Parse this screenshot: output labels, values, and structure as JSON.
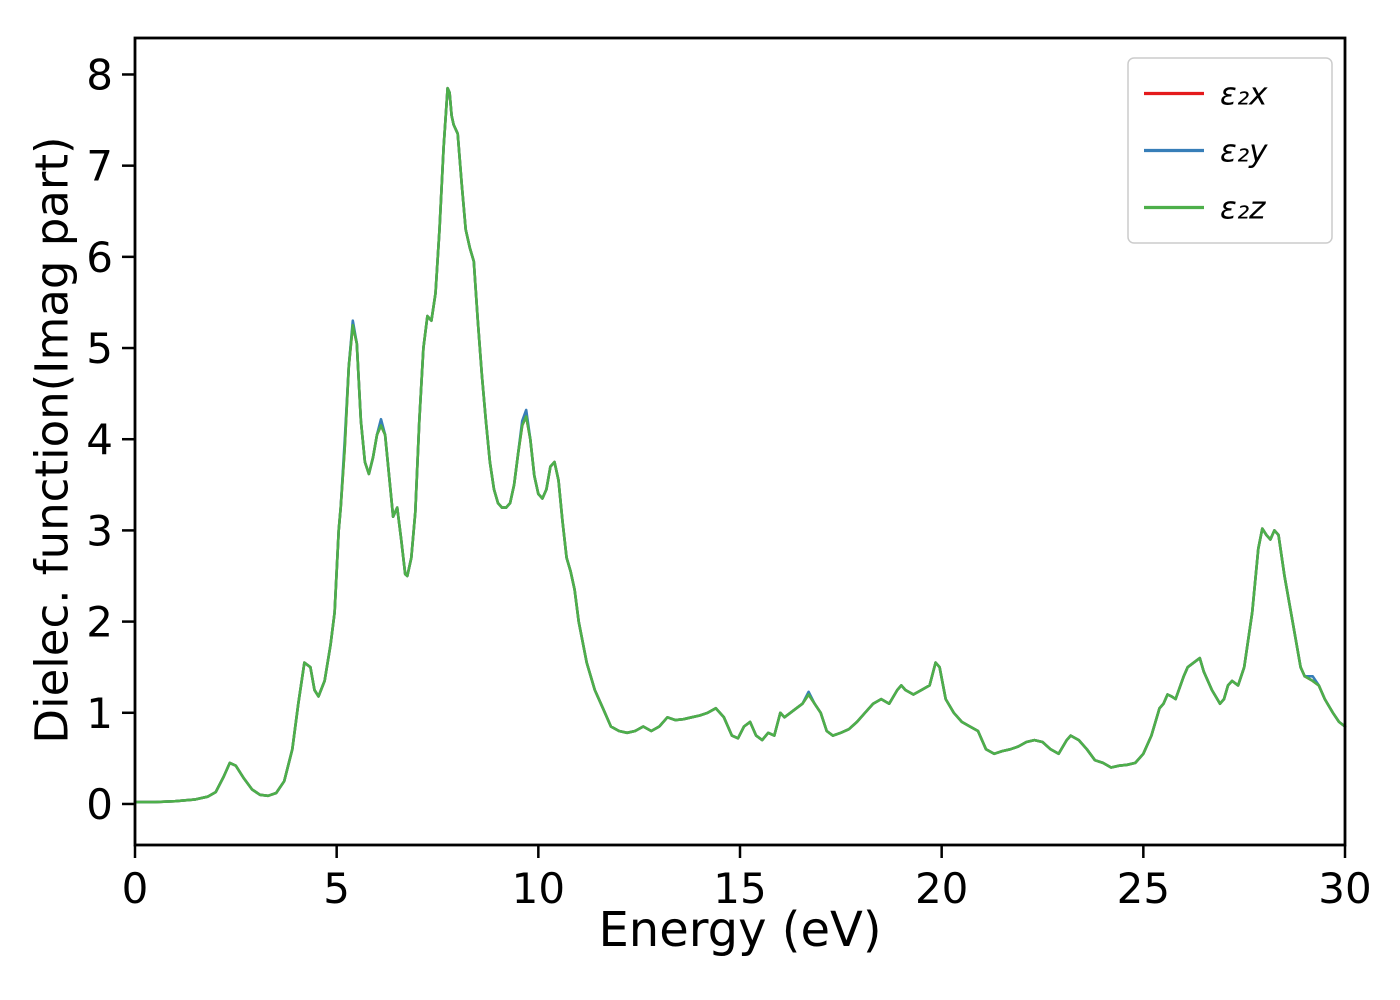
{
  "figure": {
    "background": "#ffffff"
  },
  "chart_data": {
    "type": "line",
    "title": "",
    "xlabel": "Energy (eV)",
    "ylabel": "Dielec. function(Imag part)",
    "xlim": [
      0,
      30
    ],
    "ylim": [
      -0.45,
      8.4
    ],
    "xticks": [
      0,
      5,
      10,
      15,
      20,
      25,
      30
    ],
    "yticks": [
      0,
      1,
      2,
      3,
      4,
      5,
      6,
      7,
      8
    ],
    "grid": false,
    "legend_position": "upper right",
    "x": [
      0,
      0.5,
      1,
      1.5,
      1.8,
      2,
      2.2,
      2.35,
      2.5,
      2.7,
      2.9,
      3.1,
      3.3,
      3.5,
      3.7,
      3.9,
      4.05,
      4.2,
      4.35,
      4.45,
      4.55,
      4.7,
      4.85,
      4.95,
      5.05,
      5.1,
      5.2,
      5.3,
      5.4,
      5.5,
      5.6,
      5.7,
      5.8,
      5.9,
      6,
      6.1,
      6.2,
      6.3,
      6.4,
      6.5,
      6.6,
      6.7,
      6.75,
      6.85,
      6.95,
      7.05,
      7.15,
      7.25,
      7.35,
      7.45,
      7.55,
      7.65,
      7.75,
      7.8,
      7.85,
      7.9,
      8,
      8.1,
      8.2,
      8.3,
      8.4,
      8.5,
      8.6,
      8.7,
      8.8,
      8.9,
      9,
      9.1,
      9.2,
      9.3,
      9.4,
      9.5,
      9.6,
      9.7,
      9.8,
      9.9,
      10,
      10.1,
      10.2,
      10.3,
      10.4,
      10.5,
      10.6,
      10.7,
      10.8,
      10.9,
      11,
      11.2,
      11.4,
      11.6,
      11.8,
      12,
      12.2,
      12.4,
      12.6,
      12.8,
      13,
      13.2,
      13.4,
      13.6,
      13.8,
      14,
      14.2,
      14.4,
      14.6,
      14.8,
      14.95,
      15.1,
      15.25,
      15.4,
      15.55,
      15.7,
      15.85,
      16,
      16.1,
      16.25,
      16.4,
      16.55,
      16.7,
      16.85,
      17,
      17.15,
      17.3,
      17.5,
      17.7,
      17.9,
      18.1,
      18.3,
      18.5,
      18.7,
      18.9,
      19,
      19.1,
      19.3,
      19.5,
      19.7,
      19.85,
      19.95,
      20.1,
      20.3,
      20.5,
      20.7,
      20.9,
      21.1,
      21.3,
      21.5,
      21.7,
      21.9,
      22.1,
      22.3,
      22.5,
      22.7,
      22.9,
      23.1,
      23.2,
      23.4,
      23.6,
      23.8,
      24,
      24.2,
      24.4,
      24.6,
      24.8,
      25,
      25.2,
      25.4,
      25.5,
      25.6,
      25.7,
      25.8,
      26,
      26.1,
      26.25,
      26.4,
      26.5,
      26.7,
      26.9,
      27,
      27.1,
      27.2,
      27.35,
      27.5,
      27.7,
      27.85,
      27.95,
      28.05,
      28.15,
      28.25,
      28.35,
      28.5,
      28.7,
      28.9,
      29,
      29.2,
      29.35,
      29.5,
      29.7,
      29.85,
      30
    ],
    "series": [
      {
        "name": "ε₂x",
        "color": "#e41a1c",
        "values": [
          0.02,
          0.02,
          0.03,
          0.05,
          0.08,
          0.13,
          0.3,
          0.45,
          0.42,
          0.28,
          0.16,
          0.1,
          0.09,
          0.12,
          0.25,
          0.6,
          1.1,
          1.55,
          1.5,
          1.25,
          1.18,
          1.35,
          1.75,
          2.1,
          3.0,
          3.25,
          3.9,
          4.8,
          5.25,
          5.05,
          4.2,
          3.75,
          3.62,
          3.8,
          4.05,
          4.15,
          4.05,
          3.6,
          3.15,
          3.25,
          2.9,
          2.52,
          2.5,
          2.7,
          3.2,
          4.2,
          5.0,
          5.35,
          5.3,
          5.6,
          6.3,
          7.2,
          7.85,
          7.8,
          7.55,
          7.45,
          7.35,
          6.8,
          6.3,
          6.1,
          5.95,
          5.3,
          4.7,
          4.2,
          3.75,
          3.45,
          3.3,
          3.25,
          3.25,
          3.3,
          3.5,
          3.85,
          4.15,
          4.25,
          4.0,
          3.6,
          3.4,
          3.35,
          3.45,
          3.7,
          3.75,
          3.55,
          3.1,
          2.7,
          2.55,
          2.35,
          2.0,
          1.55,
          1.25,
          1.05,
          0.85,
          0.8,
          0.78,
          0.8,
          0.85,
          0.8,
          0.85,
          0.95,
          0.92,
          0.93,
          0.95,
          0.97,
          1.0,
          1.05,
          0.95,
          0.75,
          0.72,
          0.85,
          0.9,
          0.75,
          0.7,
          0.78,
          0.75,
          1.0,
          0.95,
          1.0,
          1.05,
          1.1,
          1.2,
          1.1,
          1.0,
          0.8,
          0.75,
          0.78,
          0.82,
          0.9,
          1.0,
          1.1,
          1.15,
          1.1,
          1.25,
          1.3,
          1.25,
          1.2,
          1.25,
          1.3,
          1.55,
          1.5,
          1.15,
          1.0,
          0.9,
          0.85,
          0.8,
          0.6,
          0.55,
          0.58,
          0.6,
          0.63,
          0.68,
          0.7,
          0.68,
          0.6,
          0.55,
          0.7,
          0.75,
          0.7,
          0.6,
          0.48,
          0.45,
          0.4,
          0.42,
          0.43,
          0.45,
          0.55,
          0.75,
          1.05,
          1.1,
          1.2,
          1.18,
          1.15,
          1.4,
          1.5,
          1.55,
          1.6,
          1.45,
          1.25,
          1.1,
          1.15,
          1.3,
          1.35,
          1.3,
          1.5,
          2.1,
          2.8,
          3.02,
          2.95,
          2.9,
          3.0,
          2.95,
          2.5,
          2.0,
          1.5,
          1.4,
          1.35,
          1.3,
          1.15,
          1.0,
          0.9,
          0.85
        ]
      },
      {
        "name": "ε₂y",
        "color": "#377eb8",
        "values": [
          0.02,
          0.02,
          0.03,
          0.05,
          0.08,
          0.13,
          0.3,
          0.45,
          0.42,
          0.28,
          0.16,
          0.1,
          0.09,
          0.12,
          0.25,
          0.6,
          1.1,
          1.55,
          1.5,
          1.25,
          1.18,
          1.35,
          1.75,
          2.1,
          3.0,
          3.25,
          3.98,
          4.8,
          5.3,
          5.05,
          4.2,
          3.75,
          3.62,
          3.8,
          4.05,
          4.22,
          4.05,
          3.6,
          3.15,
          3.25,
          2.9,
          2.52,
          2.5,
          2.7,
          3.2,
          4.2,
          5.0,
          5.35,
          5.3,
          5.6,
          6.3,
          7.2,
          7.85,
          7.8,
          7.55,
          7.45,
          7.35,
          6.8,
          6.3,
          6.1,
          5.95,
          5.3,
          4.7,
          4.2,
          3.75,
          3.45,
          3.3,
          3.25,
          3.25,
          3.3,
          3.5,
          3.85,
          4.2,
          4.32,
          4.0,
          3.6,
          3.4,
          3.35,
          3.45,
          3.7,
          3.75,
          3.55,
          3.1,
          2.7,
          2.55,
          2.35,
          2.0,
          1.55,
          1.25,
          1.05,
          0.85,
          0.8,
          0.78,
          0.8,
          0.85,
          0.8,
          0.85,
          0.95,
          0.92,
          0.93,
          0.95,
          0.97,
          1.0,
          1.05,
          0.95,
          0.75,
          0.72,
          0.85,
          0.9,
          0.75,
          0.7,
          0.78,
          0.75,
          1.0,
          0.95,
          1.0,
          1.05,
          1.1,
          1.23,
          1.1,
          1.0,
          0.8,
          0.75,
          0.78,
          0.82,
          0.9,
          1.0,
          1.1,
          1.15,
          1.1,
          1.25,
          1.3,
          1.25,
          1.2,
          1.25,
          1.3,
          1.55,
          1.5,
          1.15,
          1.0,
          0.9,
          0.85,
          0.8,
          0.6,
          0.55,
          0.58,
          0.6,
          0.63,
          0.68,
          0.7,
          0.68,
          0.6,
          0.55,
          0.7,
          0.75,
          0.7,
          0.6,
          0.48,
          0.45,
          0.4,
          0.42,
          0.43,
          0.45,
          0.55,
          0.75,
          1.05,
          1.1,
          1.2,
          1.18,
          1.15,
          1.4,
          1.5,
          1.55,
          1.6,
          1.45,
          1.25,
          1.1,
          1.15,
          1.3,
          1.35,
          1.3,
          1.5,
          2.1,
          2.8,
          3.02,
          2.95,
          2.9,
          3.0,
          2.95,
          2.5,
          2.0,
          1.5,
          1.4,
          1.4,
          1.3,
          1.15,
          1.0,
          0.9,
          0.85
        ]
      },
      {
        "name": "ε₂z",
        "color": "#4daf4a",
        "values": [
          0.02,
          0.02,
          0.03,
          0.05,
          0.08,
          0.13,
          0.3,
          0.45,
          0.42,
          0.28,
          0.16,
          0.1,
          0.09,
          0.12,
          0.25,
          0.6,
          1.1,
          1.55,
          1.5,
          1.25,
          1.18,
          1.35,
          1.75,
          2.1,
          3.0,
          3.25,
          3.9,
          4.8,
          5.25,
          5.05,
          4.2,
          3.75,
          3.62,
          3.8,
          4.05,
          4.15,
          4.05,
          3.6,
          3.15,
          3.25,
          2.9,
          2.52,
          2.5,
          2.7,
          3.2,
          4.2,
          5.0,
          5.35,
          5.3,
          5.6,
          6.3,
          7.2,
          7.85,
          7.8,
          7.55,
          7.45,
          7.35,
          6.8,
          6.3,
          6.1,
          5.95,
          5.3,
          4.7,
          4.2,
          3.75,
          3.45,
          3.3,
          3.25,
          3.25,
          3.3,
          3.5,
          3.85,
          4.15,
          4.25,
          4.0,
          3.6,
          3.4,
          3.35,
          3.45,
          3.7,
          3.75,
          3.55,
          3.1,
          2.7,
          2.55,
          2.35,
          2.0,
          1.55,
          1.25,
          1.05,
          0.85,
          0.8,
          0.78,
          0.8,
          0.85,
          0.8,
          0.85,
          0.95,
          0.92,
          0.93,
          0.95,
          0.97,
          1.0,
          1.05,
          0.95,
          0.75,
          0.72,
          0.85,
          0.9,
          0.75,
          0.7,
          0.78,
          0.75,
          1.0,
          0.95,
          1.0,
          1.05,
          1.1,
          1.2,
          1.1,
          1.0,
          0.8,
          0.75,
          0.78,
          0.82,
          0.9,
          1.0,
          1.1,
          1.15,
          1.1,
          1.25,
          1.3,
          1.25,
          1.2,
          1.25,
          1.3,
          1.55,
          1.5,
          1.15,
          1.0,
          0.9,
          0.85,
          0.8,
          0.6,
          0.55,
          0.58,
          0.6,
          0.63,
          0.68,
          0.7,
          0.68,
          0.6,
          0.55,
          0.7,
          0.75,
          0.7,
          0.6,
          0.48,
          0.45,
          0.4,
          0.42,
          0.43,
          0.45,
          0.55,
          0.75,
          1.05,
          1.1,
          1.2,
          1.18,
          1.15,
          1.4,
          1.5,
          1.55,
          1.6,
          1.45,
          1.25,
          1.1,
          1.15,
          1.3,
          1.35,
          1.3,
          1.5,
          2.1,
          2.8,
          3.02,
          2.95,
          2.9,
          3.0,
          2.95,
          2.5,
          2.0,
          1.5,
          1.4,
          1.35,
          1.3,
          1.15,
          1.0,
          0.9,
          0.85
        ]
      }
    ]
  }
}
